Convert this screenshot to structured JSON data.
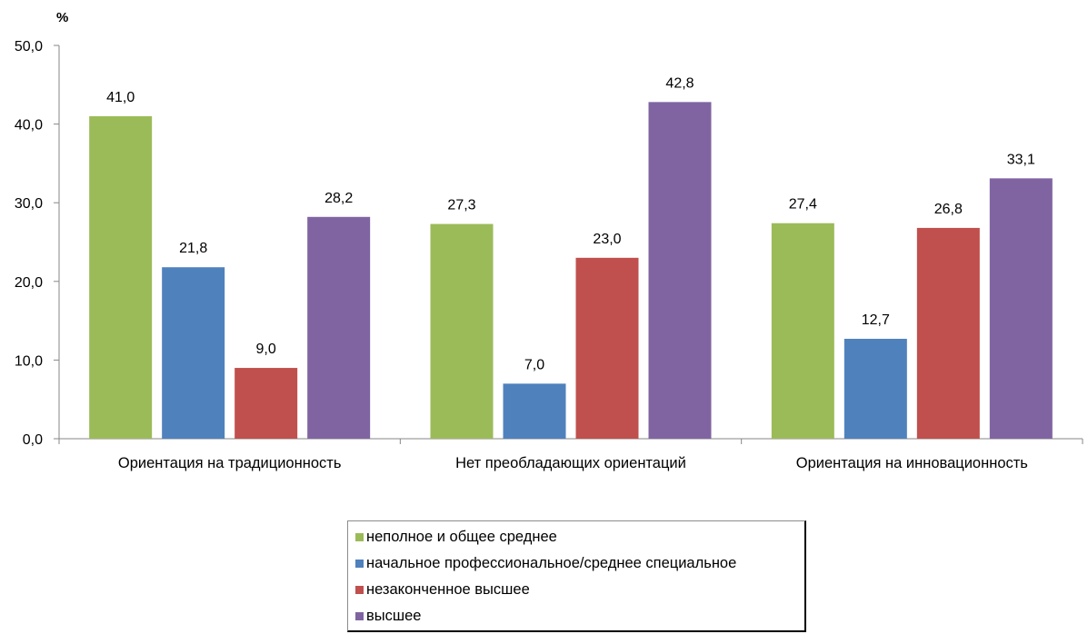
{
  "chart_data": {
    "type": "bar",
    "ylabel": "%",
    "ylim": [
      0,
      50
    ],
    "yticks": [
      "0,0",
      "10,0",
      "20,0",
      "30,0",
      "40,0",
      "50,0"
    ],
    "ytick_values": [
      0,
      10,
      20,
      30,
      40,
      50
    ],
    "categories": [
      "Ориентация на традиционность",
      "Нет преобладающих ориентаций",
      "Ориентация на инновационность"
    ],
    "series": [
      {
        "name": "неполное и общее среднее",
        "color": "#9bbb59",
        "values": [
          41.0,
          27.3,
          27.4
        ],
        "labels": [
          "41,0",
          "27,3",
          "27,4"
        ]
      },
      {
        "name": "начальное профессиональное/среднее специальное",
        "color": "#4f81bd",
        "values": [
          21.8,
          7.0,
          12.7
        ],
        "labels": [
          "21,8",
          "7,0",
          "12,7"
        ]
      },
      {
        "name": "незаконченное высшее",
        "color": "#c0504d",
        "values": [
          9.0,
          23.0,
          26.8
        ],
        "labels": [
          "9,0",
          "23,0",
          "26,8"
        ]
      },
      {
        "name": "высшее",
        "color": "#8064a2",
        "values": [
          28.2,
          42.8,
          33.1
        ],
        "labels": [
          "28,2",
          "42,8",
          "33,1"
        ]
      }
    ],
    "grid": false,
    "legend_position": "bottom"
  }
}
